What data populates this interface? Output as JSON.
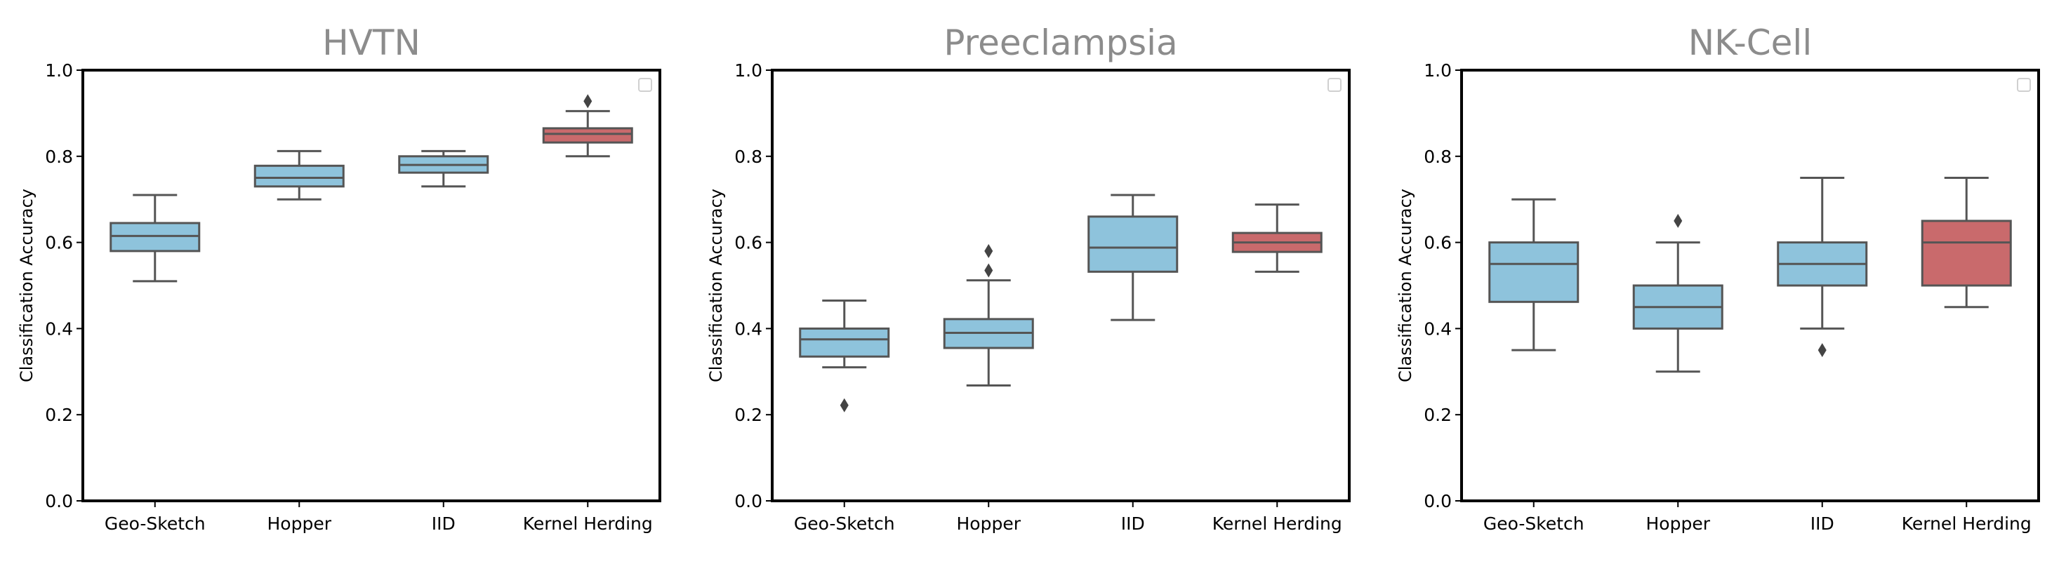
{
  "chart_data": [
    {
      "type": "boxplot",
      "title": "HVTN",
      "ylabel": "Classification Accuracy",
      "xlabel": "",
      "ylim": [
        0.0,
        1.0
      ],
      "yticks": [
        "0.0",
        "0.2",
        "0.4",
        "0.6",
        "0.8",
        "1.0"
      ],
      "categories": [
        "Geo-Sketch",
        "Hopper",
        "IID",
        "Kernel Herding"
      ],
      "boxes": [
        {
          "name": "Geo-Sketch",
          "whisker_low": 0.51,
          "q1": 0.58,
          "median": 0.615,
          "q3": 0.645,
          "whisker_high": 0.71,
          "outliers": [],
          "color": "#8ec3dc"
        },
        {
          "name": "Hopper",
          "whisker_low": 0.7,
          "q1": 0.73,
          "median": 0.75,
          "q3": 0.778,
          "whisker_high": 0.812,
          "outliers": [],
          "color": "#8ec3dc"
        },
        {
          "name": "IID",
          "whisker_low": 0.73,
          "q1": 0.762,
          "median": 0.78,
          "q3": 0.8,
          "whisker_high": 0.812,
          "outliers": [],
          "color": "#8ec3dc"
        },
        {
          "name": "Kernel Herding",
          "whisker_low": 0.8,
          "q1": 0.832,
          "median": 0.852,
          "q3": 0.865,
          "whisker_high": 0.905,
          "outliers": [
            0.928
          ],
          "color": "#c96a6c"
        }
      ]
    },
    {
      "type": "boxplot",
      "title": "Preeclampsia",
      "ylabel": "Classification Accuracy",
      "xlabel": "",
      "ylim": [
        0.0,
        1.0
      ],
      "yticks": [
        "0.0",
        "0.2",
        "0.4",
        "0.6",
        "0.8",
        "1.0"
      ],
      "categories": [
        "Geo-Sketch",
        "Hopper",
        "IID",
        "Kernel Herding"
      ],
      "boxes": [
        {
          "name": "Geo-Sketch",
          "whisker_low": 0.31,
          "q1": 0.335,
          "median": 0.375,
          "q3": 0.4,
          "whisker_high": 0.465,
          "outliers": [
            0.222
          ],
          "color": "#8ec3dc"
        },
        {
          "name": "Hopper",
          "whisker_low": 0.268,
          "q1": 0.355,
          "median": 0.39,
          "q3": 0.422,
          "whisker_high": 0.512,
          "outliers": [
            0.535,
            0.58
          ],
          "color": "#8ec3dc"
        },
        {
          "name": "IID",
          "whisker_low": 0.42,
          "q1": 0.532,
          "median": 0.588,
          "q3": 0.66,
          "whisker_high": 0.71,
          "outliers": [],
          "color": "#8ec3dc"
        },
        {
          "name": "Kernel Herding",
          "whisker_low": 0.532,
          "q1": 0.578,
          "median": 0.6,
          "q3": 0.622,
          "whisker_high": 0.688,
          "outliers": [],
          "color": "#c96a6c"
        }
      ]
    },
    {
      "type": "boxplot",
      "title": "NK-Cell",
      "ylabel": "Classification Accuracy",
      "xlabel": "",
      "ylim": [
        0.0,
        1.0
      ],
      "yticks": [
        "0.0",
        "0.2",
        "0.4",
        "0.6",
        "0.8",
        "1.0"
      ],
      "categories": [
        "Geo-Sketch",
        "Hopper",
        "IID",
        "Kernel Herding"
      ],
      "boxes": [
        {
          "name": "Geo-Sketch",
          "whisker_low": 0.35,
          "q1": 0.462,
          "median": 0.55,
          "q3": 0.6,
          "whisker_high": 0.7,
          "outliers": [],
          "color": "#8ec3dc"
        },
        {
          "name": "Hopper",
          "whisker_low": 0.3,
          "q1": 0.4,
          "median": 0.45,
          "q3": 0.5,
          "whisker_high": 0.6,
          "outliers": [
            0.65
          ],
          "color": "#8ec3dc"
        },
        {
          "name": "IID",
          "whisker_low": 0.4,
          "q1": 0.5,
          "median": 0.55,
          "q3": 0.6,
          "whisker_high": 0.75,
          "outliers": [
            0.35
          ],
          "color": "#8ec3dc"
        },
        {
          "name": "Kernel Herding",
          "whisker_low": 0.45,
          "q1": 0.5,
          "median": 0.6,
          "q3": 0.65,
          "whisker_high": 0.75,
          "outliers": [],
          "color": "#c96a6c"
        }
      ]
    }
  ]
}
